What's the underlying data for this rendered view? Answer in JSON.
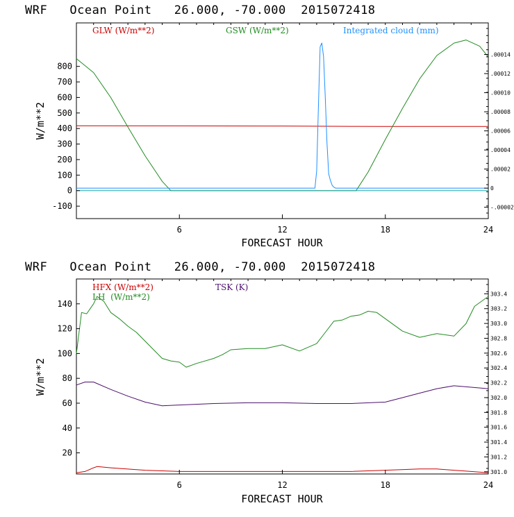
{
  "colors": {
    "red": "#cc0000",
    "green": "#228b22",
    "blue": "#1e90ff",
    "cyan": "#1fa8a8",
    "purple": "#4b0e6b",
    "axis": "#000000"
  },
  "chart_data": [
    {
      "type": "line",
      "title": "WRF   Ocean Point   26.000, -70.000  2015072418",
      "xlabel": "FORECAST HOUR",
      "ylabel": "W/m**2",
      "xlim": [
        0,
        24
      ],
      "ylim": [
        -180,
        1080
      ],
      "x_ticks": [
        6,
        12,
        18,
        24
      ],
      "y_ticks": [
        -100,
        0,
        100,
        200,
        300,
        400,
        500,
        600,
        700,
        800
      ],
      "right_ylim": [
        -3.19e-05,
        0.0001731
      ],
      "right_ticks": [
        "-.00002",
        "0",
        ".00002",
        ".00004",
        ".00006",
        ".00008",
        ".00010",
        ".00012",
        ".00014"
      ],
      "right_tick_values": [
        -2e-05,
        0,
        2e-05,
        4e-05,
        6e-05,
        8e-05,
        0.0001,
        0.00012,
        0.00014
      ],
      "legend": [
        "GLW (W/m**2)",
        "GSW (W/m**2)",
        "Integrated cloud (mm)"
      ],
      "series": [
        {
          "name": "GLW (W/m**2)",
          "axis": "left",
          "color": "red",
          "x": [
            0,
            6,
            12,
            16,
            18,
            24
          ],
          "y": [
            418,
            417,
            416,
            414,
            413,
            413
          ]
        },
        {
          "name": "GSW (W/m**2)",
          "axis": "left",
          "color": "green",
          "x": [
            0,
            1,
            2,
            3,
            4,
            5,
            5.5,
            6,
            8,
            10,
            12,
            14,
            16,
            16.3,
            17,
            18,
            19,
            20,
            21,
            22,
            22.7,
            23.5,
            24
          ],
          "y": [
            850,
            760,
            600,
            410,
            225,
            60,
            0,
            0,
            0,
            0,
            0,
            0,
            0,
            0,
            120,
            330,
            530,
            720,
            870,
            950,
            970,
            930,
            860
          ]
        },
        {
          "name": "zero line",
          "axis": "left",
          "color": "cyan",
          "x": [
            0,
            24
          ],
          "y": [
            0,
            0
          ]
        },
        {
          "name": "Integrated cloud (mm)",
          "axis": "right",
          "color": "blue",
          "x": [
            0,
            13.9,
            14.0,
            14.1,
            14.2,
            14.3,
            14.4,
            14.5,
            14.6,
            14.7,
            14.8,
            14.9,
            15.0,
            15.1,
            24
          ],
          "y": [
            0,
            0,
            1.8e-05,
            8.5e-05,
            0.000148,
            0.000152,
            0.000138,
            9.5e-05,
            4.8e-05,
            1.5e-05,
            8e-06,
            3e-06,
            1e-06,
            0,
            0
          ]
        }
      ]
    },
    {
      "type": "line",
      "title": "WRF   Ocean Point   26.000, -70.000  2015072418",
      "xlabel": "FORECAST HOUR",
      "ylabel": "W/m**2",
      "xlim": [
        0,
        24
      ],
      "ylim": [
        3,
        160
      ],
      "x_ticks": [
        6,
        12,
        18,
        24
      ],
      "y_ticks": [
        20,
        40,
        60,
        80,
        100,
        120,
        140
      ],
      "right_ylim": [
        300.97,
        303.6
      ],
      "right_ticks": [
        "301.0",
        "301.2",
        "301.4",
        "301.6",
        "301.8",
        "302.0",
        "302.2",
        "302.4",
        "302.6",
        "302.8",
        "303.0",
        "303.2",
        "303.4"
      ],
      "right_tick_values": [
        301.0,
        301.2,
        301.4,
        301.6,
        301.8,
        302.0,
        302.2,
        302.4,
        302.6,
        302.8,
        303.0,
        303.2,
        303.4
      ],
      "legend": [
        "HFX (W/m**2)",
        "LH  (W/m**2)",
        "TSK (K)"
      ],
      "series": [
        {
          "name": "HFX (W/m**2)",
          "axis": "left",
          "color": "red",
          "x": [
            0,
            0.5,
            1,
            1.2,
            2,
            4,
            6,
            8,
            10,
            12,
            14,
            16,
            18,
            20,
            21,
            22,
            23,
            24
          ],
          "y": [
            4,
            5,
            8,
            9,
            8,
            6,
            5,
            5,
            5,
            5,
            5,
            5,
            6,
            7,
            7,
            6,
            5,
            4
          ]
        },
        {
          "name": "LH  (W/m**2)",
          "axis": "left",
          "color": "green",
          "x": [
            0,
            0.3,
            0.6,
            1,
            1.2,
            1.6,
            2,
            2.5,
            3,
            3.5,
            4,
            4.5,
            5,
            5.5,
            6,
            6.4,
            7,
            8,
            8.5,
            9,
            10,
            11,
            12,
            13,
            14,
            14.5,
            15,
            15.5,
            16,
            16.5,
            17,
            17.5,
            18,
            19,
            20,
            21,
            22,
            22.7,
            23.2,
            24
          ],
          "y": [
            100,
            133,
            132,
            140,
            146,
            142,
            133,
            128,
            122,
            117,
            110,
            103,
            96,
            94,
            93,
            89,
            92,
            96,
            99,
            103,
            104,
            104,
            107,
            102,
            108,
            117,
            126,
            127,
            130,
            131,
            134,
            133,
            128,
            118,
            113,
            116,
            114,
            124,
            138,
            146
          ]
        },
        {
          "name": "TSK (K)",
          "axis": "right",
          "color": "purple",
          "x": [
            0,
            0.5,
            1,
            2,
            3,
            4,
            5,
            6,
            8,
            10,
            12,
            14,
            16,
            18,
            19,
            20,
            21,
            22,
            23,
            24
          ],
          "y": [
            302.17,
            302.21,
            302.21,
            302.11,
            302.02,
            301.94,
            301.89,
            301.9,
            301.92,
            301.93,
            301.93,
            301.92,
            301.92,
            301.94,
            302.0,
            302.06,
            302.12,
            302.16,
            302.14,
            302.12
          ]
        }
      ]
    }
  ]
}
